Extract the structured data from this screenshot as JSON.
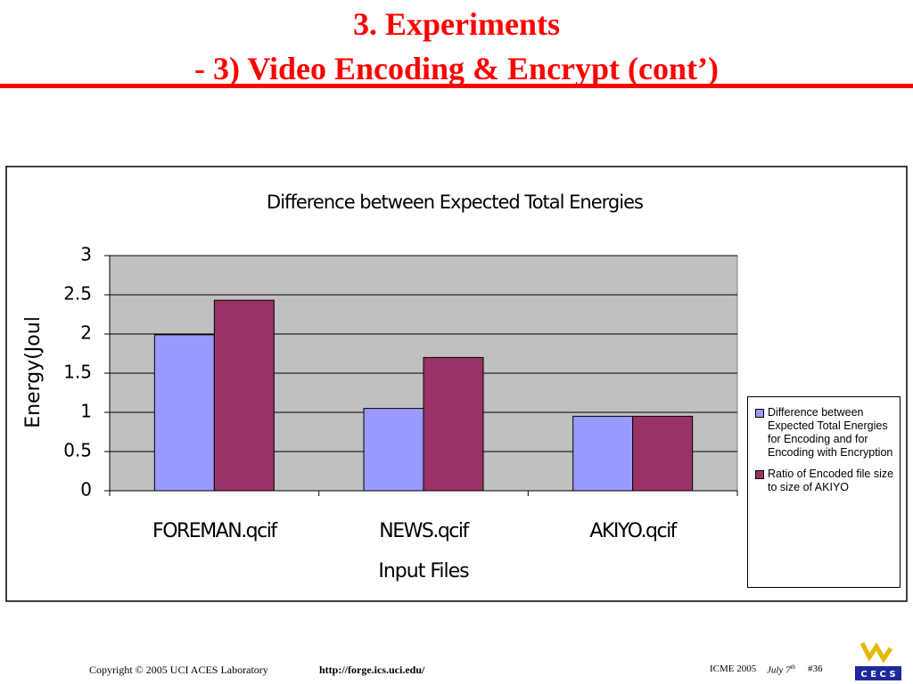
{
  "slide": {
    "title_line1": "3. Experiments",
    "title_line2": "- 3) Video Encoding & Encrypt (cont’)"
  },
  "chart_data": {
    "type": "bar",
    "title": "Difference between Expected Total Energies",
    "x_label": "Input Files",
    "y_label": "Energy(Joul",
    "categories": [
      "FOREMAN.qcif",
      "NEWS.qcif",
      "AKIYO.qcif"
    ],
    "series": [
      {
        "name": "Difference between Expected Total Energies for Encoding and for Encoding with Encryption",
        "color": "#9999ff",
        "values": [
          1.99,
          1.05,
          0.95
        ]
      },
      {
        "name": "Ratio of Encoded file size to size of AKIYO",
        "color": "#993366",
        "values": [
          2.43,
          1.7,
          0.95
        ]
      }
    ],
    "ylim": [
      0,
      3
    ],
    "yticks": [
      0,
      0.5,
      1,
      1.5,
      2,
      2.5,
      3
    ],
    "grid": true,
    "legend": "right"
  },
  "footer": {
    "copyright": "Copyright © 2005  UCI ACES Laboratory",
    "url": "http://forge.ics.uci.edu/",
    "conference": "ICME 2005",
    "date": "July 7",
    "date_suffix": "th",
    "page": "#36",
    "logo": "C E C S"
  }
}
